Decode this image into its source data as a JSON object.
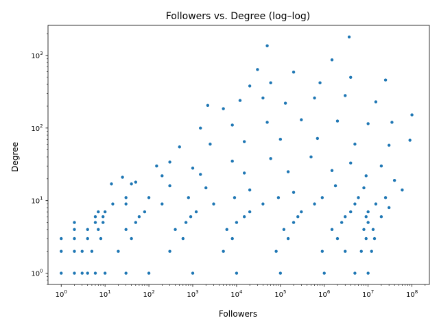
{
  "chart_data": {
    "type": "scatter",
    "title": "Followers vs. Degree (log–log)",
    "xlabel": "Followers",
    "ylabel": "Degree",
    "xscale": "log",
    "yscale": "log",
    "xlim": [
      0.5,
      250000000
    ],
    "ylim": [
      0.7,
      2600
    ],
    "grid": false,
    "legend": "none",
    "x_ticks": [
      {
        "value": 1,
        "base": "10",
        "exp": "0"
      },
      {
        "value": 10,
        "base": "10",
        "exp": "1"
      },
      {
        "value": 100,
        "base": "10",
        "exp": "2"
      },
      {
        "value": 1000,
        "base": "10",
        "exp": "3"
      },
      {
        "value": 10000,
        "base": "10",
        "exp": "4"
      },
      {
        "value": 100000,
        "base": "10",
        "exp": "5"
      },
      {
        "value": 1000000,
        "base": "10",
        "exp": "6"
      },
      {
        "value": 10000000,
        "base": "10",
        "exp": "7"
      },
      {
        "value": 100000000,
        "base": "10",
        "exp": "8"
      }
    ],
    "y_ticks": [
      {
        "value": 1,
        "base": "10",
        "exp": "0"
      },
      {
        "value": 10,
        "base": "10",
        "exp": "1"
      },
      {
        "value": 100,
        "base": "10",
        "exp": "2"
      },
      {
        "value": 1000,
        "base": "10",
        "exp": "3"
      }
    ],
    "marker_color": "#1f77b4",
    "series": [
      {
        "points": [
          [
            1,
            1
          ],
          [
            2,
            1
          ],
          [
            3,
            1
          ],
          [
            4,
            1
          ],
          [
            6,
            1
          ],
          [
            10,
            1
          ],
          [
            30,
            1
          ],
          [
            100,
            1
          ],
          [
            1000,
            1
          ],
          [
            10000,
            1
          ],
          [
            100000,
            1
          ],
          [
            1000000,
            1
          ],
          [
            5000000,
            1
          ],
          [
            10000000,
            1
          ],
          [
            1,
            2
          ],
          [
            2,
            2
          ],
          [
            3,
            2
          ],
          [
            5,
            2
          ],
          [
            20,
            2
          ],
          [
            300,
            2
          ],
          [
            5000,
            2
          ],
          [
            80000,
            2
          ],
          [
            900000,
            2
          ],
          [
            3000000,
            2
          ],
          [
            7000000,
            2
          ],
          [
            12000000,
            2
          ],
          [
            1,
            3
          ],
          [
            2,
            3
          ],
          [
            4,
            3
          ],
          [
            8,
            3
          ],
          [
            40,
            3
          ],
          [
            600,
            3
          ],
          [
            8000,
            3
          ],
          [
            150000,
            3
          ],
          [
            2000000,
            3
          ],
          [
            9000000,
            3
          ],
          [
            14000000,
            3
          ],
          [
            2,
            4
          ],
          [
            4,
            4
          ],
          [
            7,
            4
          ],
          [
            30,
            4
          ],
          [
            400,
            4
          ],
          [
            6000,
            4
          ],
          [
            120000,
            4
          ],
          [
            1500000,
            4
          ],
          [
            8000000,
            4
          ],
          [
            13000000,
            4
          ],
          [
            2,
            5
          ],
          [
            6,
            5
          ],
          [
            9,
            5
          ],
          [
            50,
            5
          ],
          [
            700,
            5
          ],
          [
            10000,
            5
          ],
          [
            200000,
            5
          ],
          [
            2500000,
            5
          ],
          [
            10000000,
            5
          ],
          [
            6,
            6
          ],
          [
            9,
            6
          ],
          [
            60,
            6
          ],
          [
            900,
            6
          ],
          [
            15000,
            6
          ],
          [
            250000,
            6
          ],
          [
            3000000,
            6
          ],
          [
            9000000,
            6
          ],
          [
            20000000,
            6
          ],
          [
            7,
            7
          ],
          [
            10,
            7
          ],
          [
            80,
            7
          ],
          [
            1200,
            7
          ],
          [
            20000,
            7
          ],
          [
            300000,
            7
          ],
          [
            4000000,
            7
          ],
          [
            10000000,
            7
          ],
          [
            15,
            9
          ],
          [
            30,
            9
          ],
          [
            200,
            9
          ],
          [
            3000,
            9
          ],
          [
            40000,
            9
          ],
          [
            600000,
            9
          ],
          [
            5000000,
            9
          ],
          [
            15000000,
            9
          ],
          [
            30,
            11
          ],
          [
            100,
            11
          ],
          [
            800,
            11
          ],
          [
            9000,
            11
          ],
          [
            90000,
            11
          ],
          [
            900000,
            11
          ],
          [
            6000000,
            11
          ],
          [
            25000000,
            11
          ],
          [
            14,
            17
          ],
          [
            40,
            17
          ],
          [
            50,
            18
          ],
          [
            300,
            16
          ],
          [
            2000,
            15
          ],
          [
            20000,
            14
          ],
          [
            200000,
            13
          ],
          [
            1800000,
            16
          ],
          [
            8000000,
            15
          ],
          [
            60000000,
            14
          ],
          [
            30000000,
            8
          ],
          [
            25,
            21
          ],
          [
            200,
            22
          ],
          [
            1500,
            23
          ],
          [
            15000,
            24
          ],
          [
            150000,
            25
          ],
          [
            1500000,
            26
          ],
          [
            9000000,
            22
          ],
          [
            40000000,
            19
          ],
          [
            150,
            30
          ],
          [
            300,
            34
          ],
          [
            1000,
            28
          ],
          [
            8000,
            35
          ],
          [
            60000,
            38
          ],
          [
            500000,
            40
          ],
          [
            4000000,
            33
          ],
          [
            20000000,
            30
          ],
          [
            500,
            55
          ],
          [
            2500,
            60
          ],
          [
            15000,
            65
          ],
          [
            100000,
            70
          ],
          [
            700000,
            72
          ],
          [
            5000000,
            60
          ],
          [
            30000000,
            58
          ],
          [
            90000000,
            68
          ],
          [
            1500,
            100
          ],
          [
            8000,
            110
          ],
          [
            50000,
            120
          ],
          [
            300000,
            130
          ],
          [
            2000000,
            125
          ],
          [
            10000000,
            115
          ],
          [
            35000000,
            120
          ],
          [
            2200,
            205
          ],
          [
            5000,
            185
          ],
          [
            12000,
            240
          ],
          [
            40000,
            260
          ],
          [
            130000,
            220
          ],
          [
            600000,
            260
          ],
          [
            3000000,
            280
          ],
          [
            15000000,
            230
          ],
          [
            100000000,
            152
          ],
          [
            20000,
            380
          ],
          [
            60000,
            420
          ],
          [
            800000,
            420
          ],
          [
            4000000,
            500
          ],
          [
            25000000,
            460
          ],
          [
            30000,
            640
          ],
          [
            200000,
            590
          ],
          [
            1500000,
            870
          ],
          [
            50000,
            1360
          ],
          [
            3700000,
            1800
          ]
        ]
      }
    ]
  }
}
